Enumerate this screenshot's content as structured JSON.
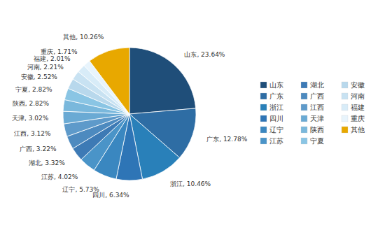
{
  "chart_data": {
    "type": "pie",
    "categories": [
      "山东",
      "广东",
      "浙江",
      "四川",
      "辽宁",
      "江苏",
      "湖北",
      "广西",
      "江西",
      "天津",
      "陕西",
      "宁夏",
      "安徽",
      "河南",
      "福建",
      "重庆",
      "其他"
    ],
    "values": [
      23.64,
      12.78,
      10.46,
      6.34,
      5.73,
      4.02,
      3.32,
      3.22,
      3.12,
      3.02,
      2.82,
      2.82,
      2.52,
      2.21,
      2.01,
      1.71,
      10.26
    ],
    "value_labels": [
      "山东, 23.64%",
      "广东, 12.78%",
      "浙江, 10.46%",
      "四川, 6.34%",
      "辽宁, 5.73%",
      "江苏, 4.02%",
      "湖北, 3.32%",
      "广西, 3.22%",
      "江西, 3.12%",
      "天津, 3.02%",
      "陕西, 2.82%",
      "宁夏, 2.82%",
      "安徽, 2.52%",
      "河南, 2.21%",
      "福建, 2.01%",
      "重庆, 1.71%",
      "其他, 10.26%"
    ],
    "colors": [
      "#1f4e79",
      "#2e6da4",
      "#2980b9",
      "#2e75b6",
      "#3a87c0",
      "#4a94c8",
      "#3d7ab5",
      "#4d8abf",
      "#5e9aca",
      "#6aaad4",
      "#7ab8dc",
      "#8ac5e4",
      "#b8d8ec",
      "#c8e2f2",
      "#d8ecf8",
      "#e8f4fc",
      "#e8a800"
    ],
    "data_labels": true,
    "legend": "right"
  }
}
